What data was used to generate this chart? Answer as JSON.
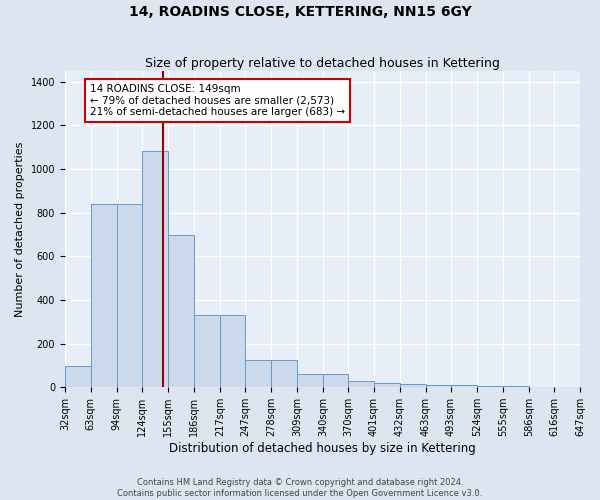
{
  "title": "14, ROADINS CLOSE, KETTERING, NN15 6GY",
  "subtitle": "Size of property relative to detached houses in Kettering",
  "xlabel": "Distribution of detached houses by size in Kettering",
  "ylabel": "Number of detached properties",
  "bar_left_edges": [
    32,
    63,
    94,
    124,
    155,
    186,
    217,
    247,
    278,
    309,
    340,
    370,
    401,
    432,
    463,
    493,
    524,
    555,
    586,
    616
  ],
  "bar_right_edges": [
    63,
    94,
    124,
    155,
    186,
    217,
    247,
    278,
    309,
    340,
    370,
    401,
    432,
    463,
    493,
    524,
    555,
    586,
    616,
    647
  ],
  "bar_heights": [
    95,
    840,
    840,
    1080,
    695,
    330,
    330,
    125,
    125,
    60,
    60,
    30,
    20,
    15,
    10,
    10,
    5,
    5,
    0,
    0
  ],
  "tick_positions": [
    32,
    63,
    94,
    124,
    155,
    186,
    217,
    247,
    278,
    309,
    340,
    370,
    401,
    432,
    463,
    493,
    524,
    555,
    586,
    616,
    647
  ],
  "tick_labels": [
    "32sqm",
    "63sqm",
    "94sqm",
    "124sqm",
    "155sqm",
    "186sqm",
    "217sqm",
    "247sqm",
    "278sqm",
    "309sqm",
    "340sqm",
    "370sqm",
    "401sqm",
    "432sqm",
    "463sqm",
    "493sqm",
    "524sqm",
    "555sqm",
    "586sqm",
    "616sqm",
    "647sqm"
  ],
  "bar_color": "#ccd9ec",
  "bar_edge_color": "#6699cc",
  "red_line_x": 149,
  "annotation_text": "14 ROADINS CLOSE: 149sqm\n← 79% of detached houses are smaller (2,573)\n21% of semi-detached houses are larger (683) →",
  "annotation_box_color": "#ffffff",
  "annotation_box_edge": "#cc0000",
  "ylim": [
    0,
    1450
  ],
  "yticks": [
    0,
    200,
    400,
    600,
    800,
    1000,
    1200,
    1400
  ],
  "background_color": "#dde6f0",
  "plot_bg_color": "#e8eef7",
  "grid_color": "#ffffff",
  "footer_line1": "Contains HM Land Registry data © Crown copyright and database right 2024.",
  "footer_line2": "Contains public sector information licensed under the Open Government Licence v3.0.",
  "title_fontsize": 10,
  "subtitle_fontsize": 9,
  "tick_label_fontsize": 7,
  "ylabel_fontsize": 8,
  "xlabel_fontsize": 8.5,
  "annotation_fontsize": 7.5
}
